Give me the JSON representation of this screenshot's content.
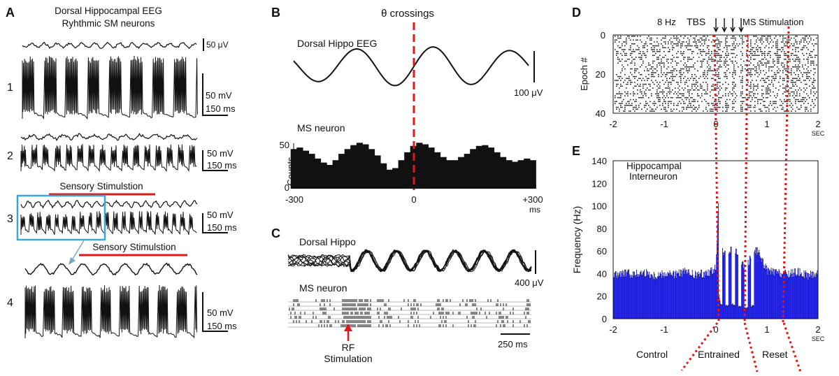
{
  "panel_a": {
    "letter": "A",
    "title1": "Dorsal Hippocampal EEG",
    "title2": "Ryhthmic SM neurons",
    "eeg_scale": "50 μV",
    "row_labels": [
      "1",
      "2",
      "3",
      "4"
    ],
    "scale_mv": "50 mV",
    "scale_ms": "150 ms",
    "stim_label": "Sensory Stimulstion"
  },
  "panel_b": {
    "letter": "B",
    "theta_label": "θ crossings",
    "eeg_label": "Dorsal Hippo EEG",
    "eeg_scale": "100 μV",
    "neuron_label": "MS neuron",
    "ylabel": "Counts",
    "y_ticks": [
      "50",
      "0"
    ],
    "x_ticks": [
      "-300",
      "0",
      "+300"
    ],
    "x_unit": "ms"
  },
  "panel_c": {
    "letter": "C",
    "eeg_label": "Dorsal Hippo",
    "eeg_scale": "400 μV",
    "neuron_label": "MS neuron",
    "stim_line1": "RF",
    "stim_line2": "Stimulation",
    "time_scale": "250 ms"
  },
  "panel_d": {
    "letter": "D",
    "freq_label": "8 Hz",
    "tbs_label": "TBS",
    "ms_stim_label": "MS Stimulation",
    "ylabel": "Epoch #",
    "y_ticks": [
      "0",
      "20",
      "40"
    ],
    "x_ticks": [
      "-2",
      "-1",
      "0",
      "1",
      "2"
    ],
    "x_unit": "SEC"
  },
  "panel_e": {
    "letter": "E",
    "title1": "Hippocampal",
    "title2": "Interneuron",
    "ylabel": "Frequency (Hz)",
    "y_ticks": [
      "140",
      "120",
      "100",
      "80",
      "60",
      "40",
      "20",
      "0"
    ],
    "x_ticks": [
      "-2",
      "-1",
      "0",
      "1",
      "2"
    ],
    "x_unit": "SEC",
    "phase_labels": [
      "Control",
      "Entrained",
      "Reset"
    ]
  },
  "colors": {
    "red": "#e01818",
    "blue_box": "#3aa6d8",
    "histogram_fill": "#1c1ce0"
  },
  "chart_data": [
    {
      "type": "bar",
      "title": "MS neuron",
      "xlabel": "ms",
      "ylabel": "Counts",
      "xlim": [
        -300,
        300
      ],
      "ylim": [
        0,
        60
      ],
      "x": [
        -300,
        -285,
        -270,
        -255,
        -240,
        -225,
        -210,
        -195,
        -180,
        -165,
        -150,
        -135,
        -120,
        -105,
        -90,
        -75,
        -60,
        -45,
        -30,
        -15,
        0,
        15,
        30,
        45,
        60,
        75,
        90,
        105,
        120,
        135,
        150,
        165,
        180,
        195,
        210,
        225,
        240,
        255,
        270,
        285,
        300
      ],
      "values": [
        50,
        52,
        48,
        44,
        38,
        33,
        30,
        36,
        44,
        50,
        55,
        58,
        56,
        50,
        42,
        32,
        24,
        26,
        36,
        46,
        54,
        58,
        56,
        52,
        46,
        40,
        36,
        36,
        40,
        44,
        50,
        54,
        55,
        52,
        46,
        40,
        36,
        34,
        36,
        38,
        36
      ]
    },
    {
      "type": "bar",
      "title": "Hippocampal Interneuron",
      "xlabel": "SEC",
      "ylabel": "Frequency (Hz)",
      "xlim": [
        -2,
        2
      ],
      "ylim": [
        0,
        140
      ],
      "x": [
        -2.0,
        -1.8,
        -1.6,
        -1.4,
        -1.2,
        -1.0,
        -0.8,
        -0.6,
        -0.4,
        -0.2,
        0.0,
        0.05,
        0.1,
        0.2,
        0.3,
        0.4,
        0.5,
        0.6,
        0.7,
        0.8,
        0.9,
        1.0,
        1.2,
        1.4,
        1.6,
        1.8,
        2.0
      ],
      "values": [
        38,
        40,
        39,
        41,
        38,
        40,
        39,
        41,
        38,
        40,
        44,
        104,
        60,
        55,
        62,
        58,
        50,
        46,
        56,
        60,
        52,
        42,
        40,
        39,
        41,
        38,
        40
      ]
    }
  ]
}
